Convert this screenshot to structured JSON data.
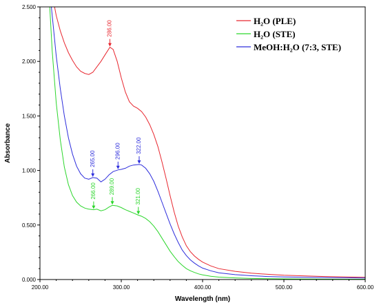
{
  "chart_data": {
    "type": "line",
    "xlabel": "Wavelength (nm)",
    "ylabel": "Absorbance",
    "xlim": [
      200,
      600
    ],
    "ylim": [
      0,
      2.5
    ],
    "x_ticks": [
      "200.00",
      "300.00",
      "400.00",
      "500.00",
      "600.00"
    ],
    "y_ticks": [
      "0.000",
      "0.500",
      "1.000",
      "1.500",
      "2.000",
      "2.500"
    ],
    "legend_position": "top-right",
    "series": [
      {
        "name": "H₂O (PLE)",
        "color": "#e8262e",
        "points": [
          [
            218,
            2.5
          ],
          [
            220,
            2.42
          ],
          [
            225,
            2.28
          ],
          [
            230,
            2.17
          ],
          [
            235,
            2.08
          ],
          [
            240,
            2.01
          ],
          [
            245,
            1.95
          ],
          [
            250,
            1.91
          ],
          [
            255,
            1.89
          ],
          [
            260,
            1.88
          ],
          [
            265,
            1.9
          ],
          [
            270,
            1.95
          ],
          [
            275,
            2.0
          ],
          [
            280,
            2.06
          ],
          [
            286,
            2.13
          ],
          [
            290,
            2.11
          ],
          [
            295,
            2.0
          ],
          [
            300,
            1.85
          ],
          [
            305,
            1.72
          ],
          [
            310,
            1.63
          ],
          [
            315,
            1.59
          ],
          [
            320,
            1.57
          ],
          [
            325,
            1.54
          ],
          [
            330,
            1.49
          ],
          [
            335,
            1.42
          ],
          [
            340,
            1.33
          ],
          [
            345,
            1.22
          ],
          [
            350,
            1.08
          ],
          [
            355,
            0.93
          ],
          [
            360,
            0.77
          ],
          [
            365,
            0.62
          ],
          [
            370,
            0.49
          ],
          [
            375,
            0.39
          ],
          [
            380,
            0.31
          ],
          [
            385,
            0.255
          ],
          [
            390,
            0.215
          ],
          [
            395,
            0.185
          ],
          [
            400,
            0.16
          ],
          [
            410,
            0.125
          ],
          [
            420,
            0.1
          ],
          [
            440,
            0.075
          ],
          [
            460,
            0.058
          ],
          [
            480,
            0.048
          ],
          [
            500,
            0.04
          ],
          [
            550,
            0.028
          ],
          [
            600,
            0.02
          ]
        ]
      },
      {
        "name": "H₂O (STE)",
        "color": "#2bd62b",
        "points": [
          [
            212,
            2.5
          ],
          [
            215,
            2.1
          ],
          [
            220,
            1.62
          ],
          [
            225,
            1.28
          ],
          [
            230,
            1.03
          ],
          [
            235,
            0.87
          ],
          [
            240,
            0.77
          ],
          [
            245,
            0.71
          ],
          [
            250,
            0.675
          ],
          [
            255,
            0.655
          ],
          [
            260,
            0.645
          ],
          [
            266,
            0.64
          ],
          [
            270,
            0.645
          ],
          [
            275,
            0.63
          ],
          [
            280,
            0.64
          ],
          [
            285,
            0.665
          ],
          [
            289,
            0.68
          ],
          [
            295,
            0.675
          ],
          [
            300,
            0.66
          ],
          [
            305,
            0.64
          ],
          [
            310,
            0.625
          ],
          [
            315,
            0.61
          ],
          [
            321,
            0.59
          ],
          [
            325,
            0.58
          ],
          [
            330,
            0.56
          ],
          [
            335,
            0.53
          ],
          [
            340,
            0.49
          ],
          [
            345,
            0.44
          ],
          [
            350,
            0.38
          ],
          [
            355,
            0.32
          ],
          [
            360,
            0.26
          ],
          [
            365,
            0.21
          ],
          [
            370,
            0.165
          ],
          [
            375,
            0.13
          ],
          [
            380,
            0.1
          ],
          [
            385,
            0.08
          ],
          [
            390,
            0.065
          ],
          [
            395,
            0.052
          ],
          [
            400,
            0.043
          ],
          [
            410,
            0.03
          ],
          [
            420,
            0.022
          ],
          [
            440,
            0.015
          ],
          [
            460,
            0.01
          ],
          [
            500,
            0.006
          ],
          [
            550,
            0.004
          ],
          [
            600,
            0.003
          ]
        ]
      },
      {
        "name": "MeOH:H₂O (7:3, STE)",
        "color": "#2d2ddc",
        "points": [
          [
            214,
            2.5
          ],
          [
            216,
            2.35
          ],
          [
            220,
            2.05
          ],
          [
            225,
            1.75
          ],
          [
            230,
            1.5
          ],
          [
            235,
            1.3
          ],
          [
            240,
            1.15
          ],
          [
            245,
            1.04
          ],
          [
            250,
            0.97
          ],
          [
            255,
            0.93
          ],
          [
            260,
            0.92
          ],
          [
            265,
            0.935
          ],
          [
            270,
            0.93
          ],
          [
            275,
            0.895
          ],
          [
            280,
            0.92
          ],
          [
            285,
            0.96
          ],
          [
            290,
            0.99
          ],
          [
            296,
            1.005
          ],
          [
            300,
            1.01
          ],
          [
            305,
            1.02
          ],
          [
            310,
            1.04
          ],
          [
            315,
            1.05
          ],
          [
            322,
            1.055
          ],
          [
            325,
            1.05
          ],
          [
            330,
            1.02
          ],
          [
            335,
            0.97
          ],
          [
            340,
            0.9
          ],
          [
            345,
            0.81
          ],
          [
            350,
            0.71
          ],
          [
            355,
            0.61
          ],
          [
            360,
            0.51
          ],
          [
            365,
            0.42
          ],
          [
            370,
            0.34
          ],
          [
            375,
            0.27
          ],
          [
            380,
            0.22
          ],
          [
            385,
            0.18
          ],
          [
            390,
            0.15
          ],
          [
            395,
            0.125
          ],
          [
            400,
            0.105
          ],
          [
            410,
            0.08
          ],
          [
            420,
            0.062
          ],
          [
            440,
            0.045
          ],
          [
            460,
            0.035
          ],
          [
            480,
            0.028
          ],
          [
            500,
            0.024
          ],
          [
            550,
            0.018
          ],
          [
            600,
            0.014
          ]
        ]
      }
    ],
    "annotations": [
      {
        "text": "286.00",
        "x": 286,
        "y": 2.13,
        "series": 0
      },
      {
        "text": "265.00",
        "x": 265,
        "y": 0.935,
        "series": 2
      },
      {
        "text": "296.00",
        "x": 296,
        "y": 1.005,
        "series": 2
      },
      {
        "text": "322.00",
        "x": 322,
        "y": 1.055,
        "series": 2
      },
      {
        "text": "266.00",
        "x": 266,
        "y": 0.64,
        "series": 1
      },
      {
        "text": "289.00",
        "x": 289,
        "y": 0.68,
        "series": 1
      },
      {
        "text": "321.00",
        "x": 321,
        "y": 0.59,
        "series": 1
      }
    ]
  }
}
